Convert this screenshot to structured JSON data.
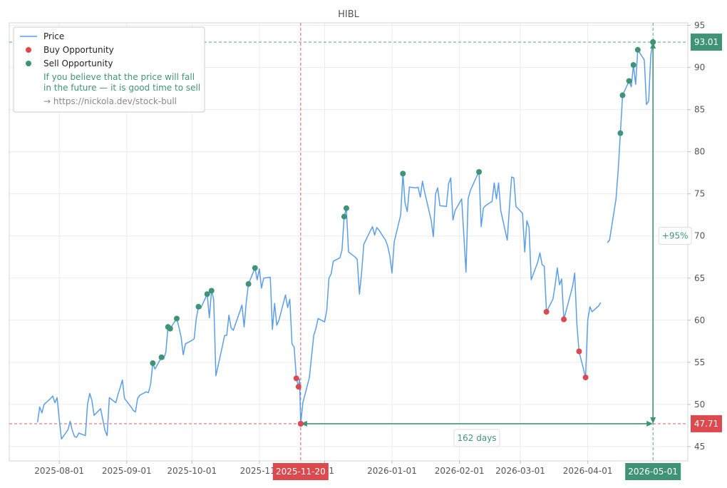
{
  "chart_data": {
    "type": "line",
    "title": "HIBL",
    "xlabel": "",
    "ylabel": "",
    "x_range": [
      "2025-07-09",
      "2026-05-17"
    ],
    "ylim": [
      43.3,
      95.3
    ],
    "y_ticks": [
      45,
      50,
      55,
      60,
      65,
      70,
      75,
      80,
      85,
      90,
      95
    ],
    "x_ticks": [
      {
        "date": "2025-08-01",
        "label": "2025-08-01"
      },
      {
        "date": "2025-09-01",
        "label": "2025-09-01"
      },
      {
        "date": "2025-10-01",
        "label": "2025-10-01"
      },
      {
        "date": "2025-11-01",
        "label": "2025-11-"
      },
      {
        "date": "2025-12-01",
        "label": "2-01"
      },
      {
        "date": "2026-01-01",
        "label": "2026-01-01"
      },
      {
        "date": "2026-02-01",
        "label": "2026-02-01"
      },
      {
        "date": "2026-03-01",
        "label": "2026-03-01"
      },
      {
        "date": "2026-04-01",
        "label": "2026-04-01"
      }
    ],
    "grid": true,
    "legend_position": "top-left",
    "colors": {
      "price": "#5b9ee8",
      "buy": "#dc4a4f",
      "sell": "#3f9478",
      "grid": "#ececec",
      "muted": "#888888"
    },
    "series": [
      {
        "name": "Price",
        "segments": [
          [
            [
              "2025-07-22",
              47.9
            ],
            [
              "2025-07-23",
              49.7
            ],
            [
              "2025-07-24",
              49.0
            ],
            [
              "2025-07-25",
              50.0
            ],
            [
              "2025-07-28",
              50.7
            ],
            [
              "2025-07-29",
              51.0
            ],
            [
              "2025-07-30",
              50.2
            ],
            [
              "2025-07-31",
              50.8
            ],
            [
              "2025-08-01",
              48.2
            ],
            [
              "2025-08-02",
              45.9
            ],
            [
              "2025-08-05",
              47.0
            ],
            [
              "2025-08-06",
              48.0
            ],
            [
              "2025-08-07",
              46.9
            ],
            [
              "2025-08-08",
              46.2
            ],
            [
              "2025-08-09",
              46.1
            ],
            [
              "2025-08-10",
              46.6
            ],
            [
              "2025-08-13",
              46.3
            ],
            [
              "2025-08-14",
              50.0
            ],
            [
              "2025-08-15",
              51.3
            ],
            [
              "2025-08-16",
              50.5
            ],
            [
              "2025-08-17",
              48.7
            ],
            [
              "2025-08-20",
              49.5
            ],
            [
              "2025-08-21",
              48.2
            ],
            [
              "2025-08-22",
              46.9
            ],
            [
              "2025-08-23",
              46.3
            ],
            [
              "2025-08-24",
              50.8
            ],
            [
              "2025-08-27",
              50.2
            ],
            [
              "2025-08-28",
              51.2
            ],
            [
              "2025-08-29",
              52.0
            ],
            [
              "2025-08-30",
              52.9
            ],
            [
              "2025-08-31",
              50.7
            ],
            [
              "2025-09-03",
              49.7
            ],
            [
              "2025-09-04",
              49.3
            ],
            [
              "2025-09-05",
              49.1
            ],
            [
              "2025-09-06",
              50.7
            ],
            [
              "2025-09-07",
              51.1
            ],
            [
              "2025-09-10",
              51.5
            ],
            [
              "2025-09-11",
              51.4
            ],
            [
              "2025-09-12",
              52.4
            ],
            [
              "2025-09-13",
              54.9
            ],
            [
              "2025-09-14",
              54.2
            ],
            [
              "2025-09-17",
              55.6
            ],
            [
              "2025-09-18",
              55.4
            ],
            [
              "2025-09-19",
              56.2
            ],
            [
              "2025-09-20",
              59.2
            ],
            [
              "2025-09-21",
              59.0
            ],
            [
              "2025-09-24",
              60.2
            ],
            [
              "2025-09-25",
              59.2
            ],
            [
              "2025-09-26",
              58.0
            ],
            [
              "2025-09-27",
              55.9
            ],
            [
              "2025-09-28",
              57.2
            ],
            [
              "2025-10-01",
              57.6
            ],
            [
              "2025-10-02",
              57.8
            ],
            [
              "2025-10-03",
              60.2
            ],
            [
              "2025-10-04",
              61.6
            ],
            [
              "2025-10-05",
              61.4
            ],
            [
              "2025-10-08",
              63.1
            ],
            [
              "2025-10-09",
              60.3
            ],
            [
              "2025-10-10",
              63.5
            ],
            [
              "2025-10-11",
              62.5
            ],
            [
              "2025-10-12",
              53.4
            ],
            [
              "2025-10-15",
              56.9
            ],
            [
              "2025-10-16",
              58.2
            ],
            [
              "2025-10-17",
              58.2
            ],
            [
              "2025-10-18",
              60.6
            ],
            [
              "2025-10-19",
              59.1
            ],
            [
              "2025-10-20",
              58.8
            ],
            [
              "2025-10-23",
              61.0
            ],
            [
              "2025-10-24",
              61.8
            ],
            [
              "2025-10-25",
              59.2
            ],
            [
              "2025-10-26",
              62.2
            ],
            [
              "2025-10-27",
              64.3
            ],
            [
              "2025-10-30",
              66.2
            ],
            [
              "2025-10-31",
              64.8
            ],
            [
              "2025-11-01",
              66.1
            ],
            [
              "2025-11-02",
              63.8
            ],
            [
              "2025-11-03",
              65.0
            ],
            [
              "2025-11-06",
              65.1
            ],
            [
              "2025-11-07",
              58.9
            ],
            [
              "2025-11-08",
              62.0
            ],
            [
              "2025-11-09",
              59.4
            ],
            [
              "2025-11-10",
              60.0
            ],
            [
              "2025-11-13",
              63.0
            ],
            [
              "2025-11-14",
              61.5
            ],
            [
              "2025-11-15",
              62.5
            ],
            [
              "2025-11-16",
              57.2
            ],
            [
              "2025-11-17",
              56.8
            ],
            [
              "2025-11-18",
              53.1
            ],
            [
              "2025-11-19",
              52.1
            ],
            [
              "2025-11-19T12",
              53.0
            ],
            [
              "2025-11-20",
              47.71
            ],
            [
              "2025-11-21",
              50.2
            ],
            [
              "2025-11-24",
              53.2
            ],
            [
              "2025-11-25",
              55.7
            ],
            [
              "2025-11-26",
              58.2
            ],
            [
              "2025-11-27",
              59.0
            ],
            [
              "2025-11-28",
              60.2
            ],
            [
              "2025-12-01",
              59.8
            ],
            [
              "2025-12-02",
              61.2
            ],
            [
              "2025-12-03",
              65.0
            ],
            [
              "2025-12-04",
              65.5
            ],
            [
              "2025-12-05",
              67.0
            ],
            [
              "2025-12-08",
              67.4
            ],
            [
              "2025-12-09",
              68.3
            ],
            [
              "2025-12-10",
              72.3
            ],
            [
              "2025-12-11",
              73.3
            ],
            [
              "2025-12-12",
              68.1
            ],
            [
              "2025-12-15",
              67.5
            ],
            [
              "2025-12-16",
              67.2
            ],
            [
              "2025-12-17",
              63.1
            ],
            [
              "2025-12-18",
              65.6
            ],
            [
              "2025-12-19",
              69.0
            ],
            [
              "2025-12-22",
              70.6
            ],
            [
              "2025-12-23",
              71.1
            ],
            [
              "2025-12-24",
              70.1
            ],
            [
              "2025-12-25",
              71.0
            ],
            [
              "2025-12-26",
              70.7
            ],
            [
              "2025-12-29",
              69.5
            ],
            [
              "2025-12-30",
              68.8
            ],
            [
              "2025-12-31",
              67.6
            ],
            [
              "2026-01-01",
              65.6
            ],
            [
              "2026-01-02",
              69.3
            ],
            [
              "2026-01-05",
              72.5
            ],
            [
              "2026-01-06",
              77.4
            ],
            [
              "2026-01-07",
              73.9
            ],
            [
              "2026-01-08",
              72.9
            ],
            [
              "2026-01-09",
              75.8
            ],
            [
              "2026-01-12",
              75.7
            ],
            [
              "2026-01-13",
              75.8
            ],
            [
              "2026-01-14",
              74.6
            ],
            [
              "2026-01-15",
              76.5
            ],
            [
              "2026-01-16",
              75.2
            ],
            [
              "2026-01-19",
              71.9
            ],
            [
              "2026-01-20",
              69.9
            ],
            [
              "2026-01-21",
              75.0
            ],
            [
              "2026-01-22",
              75.7
            ],
            [
              "2026-01-23",
              73.6
            ],
            [
              "2026-01-26",
              73.5
            ],
            [
              "2026-01-27",
              76.2
            ],
            [
              "2026-01-28",
              76.9
            ],
            [
              "2026-01-29",
              71.9
            ],
            [
              "2026-01-30",
              73.0
            ],
            [
              "2026-02-02",
              74.4
            ],
            [
              "2026-02-03",
              70.2
            ],
            [
              "2026-02-04",
              65.7
            ],
            [
              "2026-02-05",
              74.4
            ],
            [
              "2026-02-06",
              75.4
            ],
            [
              "2026-02-09",
              77.1
            ],
            [
              "2026-02-10",
              77.6
            ],
            [
              "2026-02-11",
              71.1
            ],
            [
              "2026-02-12",
              73.3
            ],
            [
              "2026-02-13",
              73.6
            ],
            [
              "2026-02-16",
              74.1
            ],
            [
              "2026-02-17",
              76.3
            ],
            [
              "2026-02-18",
              74.4
            ],
            [
              "2026-02-19",
              76.3
            ],
            [
              "2026-02-20",
              73.0
            ],
            [
              "2026-02-23",
              69.5
            ],
            [
              "2026-02-24",
              73.5
            ],
            [
              "2026-02-25",
              77.0
            ],
            [
              "2026-02-26",
              76.9
            ],
            [
              "2026-02-27",
              73.5
            ],
            [
              "2026-03-02",
              72.7
            ],
            [
              "2026-03-03",
              68.1
            ],
            [
              "2026-03-04",
              71.8
            ],
            [
              "2026-03-05",
              71.0
            ],
            [
              "2026-03-06",
              64.8
            ],
            [
              "2026-03-09",
              66.9
            ],
            [
              "2026-03-10",
              68.0
            ],
            [
              "2026-03-11",
              66.6
            ],
            [
              "2026-03-12",
              66.4
            ],
            [
              "2026-03-13",
              61.0
            ],
            [
              "2026-03-16",
              62.5
            ],
            [
              "2026-03-17",
              64.2
            ],
            [
              "2026-03-18",
              66.2
            ],
            [
              "2026-03-19",
              64.2
            ],
            [
              "2026-03-20",
              64.9
            ],
            [
              "2026-03-21",
              60.1
            ],
            [
              "2026-03-24",
              63.0
            ],
            [
              "2026-03-25",
              64.0
            ],
            [
              "2026-03-26",
              65.6
            ],
            [
              "2026-03-27",
              59.5
            ],
            [
              "2026-03-28",
              56.3
            ],
            [
              "2026-03-31",
              53.2
            ],
            [
              "2026-04-01",
              60.0
            ],
            [
              "2026-04-02",
              61.6
            ],
            [
              "2026-04-03",
              61.0
            ],
            [
              "2026-04-06",
              61.7
            ],
            [
              "2026-04-07",
              62.1
            ]
          ],
          [
            [
              "2026-04-10",
              69.2
            ],
            [
              "2026-04-11",
              69.5
            ],
            [
              "2026-04-14",
              74.4
            ],
            [
              "2026-04-15",
              77.9
            ],
            [
              "2026-04-16",
              82.2
            ],
            [
              "2026-04-17",
              86.7
            ],
            [
              "2026-04-20",
              88.4
            ],
            [
              "2026-04-21",
              87.7
            ],
            [
              "2026-04-22",
              90.3
            ],
            [
              "2026-04-23",
              88.0
            ],
            [
              "2026-04-24",
              92.1
            ],
            [
              "2026-04-27",
              90.9
            ],
            [
              "2026-04-28",
              85.6
            ],
            [
              "2026-04-29",
              86.0
            ],
            [
              "2026-04-30",
              91.5
            ],
            [
              "2026-05-01",
              93.01
            ]
          ]
        ]
      },
      {
        "name": "Buy Opportunity",
        "points": [
          [
            "2025-11-18",
            53.1
          ],
          [
            "2025-11-19",
            52.1
          ],
          [
            "2025-11-20",
            47.71
          ],
          [
            "2026-03-13",
            61.0
          ],
          [
            "2026-03-21",
            60.1
          ],
          [
            "2026-03-28",
            56.3
          ],
          [
            "2026-03-31",
            53.2
          ]
        ]
      },
      {
        "name": "Sell Opportunity",
        "points": [
          [
            "2025-09-13",
            54.9
          ],
          [
            "2025-09-17",
            55.6
          ],
          [
            "2025-09-20",
            59.2
          ],
          [
            "2025-09-21",
            59.0
          ],
          [
            "2025-09-24",
            60.2
          ],
          [
            "2025-10-04",
            61.6
          ],
          [
            "2025-10-08",
            63.1
          ],
          [
            "2025-10-10",
            63.5
          ],
          [
            "2025-10-27",
            64.3
          ],
          [
            "2025-10-30",
            66.2
          ],
          [
            "2025-12-10",
            72.3
          ],
          [
            "2025-12-11",
            73.3
          ],
          [
            "2026-01-06",
            77.4
          ],
          [
            "2026-02-10",
            77.6
          ],
          [
            "2026-04-16",
            82.2
          ],
          [
            "2026-04-17",
            86.7
          ],
          [
            "2026-04-20",
            88.4
          ],
          [
            "2026-04-22",
            90.3
          ],
          [
            "2026-04-24",
            92.1
          ],
          [
            "2026-05-01",
            93.01
          ]
        ]
      }
    ],
    "legend": {
      "price_label": "Price",
      "buy_label": "Buy Opportunity",
      "sell_label": "Sell Opportunity",
      "note_line1": "If you believe that the price will fall",
      "note_line2": "in the future — it is good time to sell",
      "link": "→ https://nickola.dev/stock-bull"
    },
    "annotations": {
      "low": {
        "date": "2025-11-20",
        "value": 47.71,
        "date_label": "2025-11-20",
        "value_label": "47.71"
      },
      "high": {
        "date": "2026-05-01",
        "value": 93.01,
        "date_label": "2026-05-01",
        "value_label": "93.01"
      },
      "days_label": "162 days",
      "change_label": "+95%"
    }
  }
}
